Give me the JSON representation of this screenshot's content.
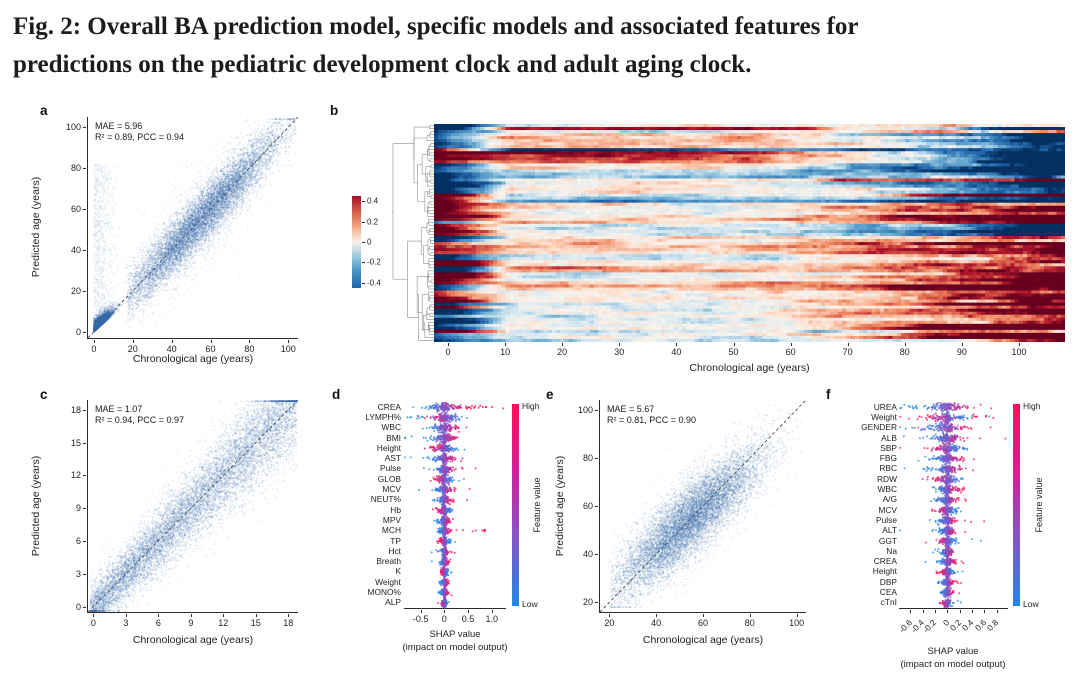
{
  "caption": {
    "line1": "Fig. 2: Overall BA prediction model, specific models and associated features for",
    "line2": "predictions on the pediatric development clock and adult aging clock."
  },
  "chart_data": [
    {
      "panel": "a",
      "type": "scatter",
      "xlabel": "Chronological age (years)",
      "ylabel": "Predicted age (years)",
      "xlim": [
        0,
        100
      ],
      "ylim": [
        0,
        100
      ],
      "xticks": [
        0,
        20,
        40,
        60,
        80,
        100
      ],
      "yticks": [
        0,
        20,
        40,
        60,
        80,
        100
      ],
      "xtick_labels": [
        "0",
        "20",
        "40",
        "60",
        "80",
        "100"
      ],
      "ytick_labels": [
        "0",
        "20",
        "40",
        "60",
        "80",
        "100"
      ],
      "stats": {
        "MAE": 5.96,
        "R2": 0.89,
        "PCC": 0.94
      },
      "stats_text": [
        "MAE = 5.96",
        "R² = 0.89, PCC = 0.94"
      ],
      "point_color": "#3a6ba6",
      "identity_line": "dashed",
      "description": "Dense blue scatter of predicted vs chronological age along the identity line with a tight pediatric cluster near the origin."
    },
    {
      "panel": "b",
      "type": "heatmap",
      "xlabel": "Chronological age (years)",
      "xticks": [
        0,
        10,
        20,
        30,
        40,
        50,
        60,
        70,
        80,
        90,
        100
      ],
      "xtick_labels": [
        "0",
        "10",
        "20",
        "30",
        "40",
        "50",
        "60",
        "70",
        "80",
        "90",
        "100"
      ],
      "colorbar": {
        "ticks": [
          0.4,
          0.2,
          0,
          -0.2,
          -0.4
        ],
        "tick_labels": [
          "0.4",
          "0.2",
          "0",
          "-0.2",
          "-0.4"
        ],
        "max_color": "#b2182b",
        "mid_color": "#f7f0e8",
        "min_color": "#2166ac"
      },
      "dendrogram": "left",
      "description": "Hierarchically clustered heatmap of feature values across chronological age 0-100, diverging red-blue scale about -0.4 to 0.4, strongest values in infancy and old age."
    },
    {
      "panel": "c",
      "type": "scatter",
      "xlabel": "Chronological age (years)",
      "ylabel": "Predicted age (years)",
      "xlim": [
        0,
        18
      ],
      "ylim": [
        0,
        18
      ],
      "xticks": [
        0,
        3,
        6,
        9,
        12,
        15,
        18
      ],
      "yticks": [
        0,
        3,
        6,
        9,
        12,
        15,
        18
      ],
      "xtick_labels": [
        "0",
        "3",
        "6",
        "9",
        "12",
        "15",
        "18"
      ],
      "ytick_labels": [
        "0",
        "3",
        "6",
        "9",
        "12",
        "15",
        "18"
      ],
      "stats": {
        "MAE": 1.07,
        "R2": 0.94,
        "PCC": 0.97
      },
      "stats_text": [
        "MAE = 1.07",
        "R² = 0.94, PCC = 0.97"
      ],
      "point_color": "#3a6ba6",
      "identity_line": "dashed"
    },
    {
      "panel": "d",
      "type": "beeswarm",
      "features": [
        "CREA",
        "LYMPH%",
        "WBC",
        "BMI",
        "Height",
        "AST",
        "Pulse",
        "GLOB",
        "MCV",
        "NEUT%",
        "Hb",
        "MPV",
        "MCH",
        "TP",
        "Hct",
        "Breath",
        "K",
        "Weight",
        "MONO%",
        "ALP"
      ],
      "xticks": [
        -0.5,
        0,
        0.5,
        1.0
      ],
      "xtick_labels": [
        "-0.5",
        "0",
        "0.5",
        "1.0"
      ],
      "xlim": [
        -0.85,
        1.3
      ],
      "xlabel_lines": [
        "SHAP value",
        "(impact on model output)"
      ],
      "colorbar": {
        "high": "High",
        "low": "Low",
        "label": "Feature value",
        "high_color": "#ff0d57",
        "low_color": "#1e88e5"
      }
    },
    {
      "panel": "e",
      "type": "scatter",
      "xlabel": "Chronological age (years)",
      "ylabel": "Predicted age (years)",
      "xlim": [
        20,
        100
      ],
      "ylim": [
        20,
        100
      ],
      "xticks": [
        20,
        40,
        60,
        80,
        100
      ],
      "yticks": [
        20,
        40,
        60,
        80,
        100
      ],
      "xtick_labels": [
        "20",
        "40",
        "60",
        "80",
        "100"
      ],
      "ytick_labels": [
        "20",
        "40",
        "60",
        "80",
        "100"
      ],
      "stats": {
        "MAE": 5.67,
        "R2": 0.81,
        "PCC": 0.9
      },
      "stats_text": [
        "MAE = 5.67",
        "R² = 0.81, PCC = 0.90"
      ],
      "point_color": "#3a6ba6",
      "identity_line": "dashed"
    },
    {
      "panel": "f",
      "type": "beeswarm",
      "features": [
        "UREA",
        "Weight",
        "GENDER",
        "ALB",
        "SBP",
        "FBG",
        "RBC",
        "RDW",
        "WBC",
        "A/G",
        "MCV",
        "Pulse",
        "ALT",
        "GGT",
        "Na",
        "CREA",
        "Height",
        "DBP",
        "CEA",
        "cTnI"
      ],
      "xticks": [
        -0.6,
        -0.4,
        -0.2,
        0,
        0.2,
        0.4,
        0.6,
        0.8
      ],
      "xtick_labels": [
        "-0.6",
        "-0.4",
        "-0.2",
        "0",
        "0.2",
        "0.4",
        "0.6",
        "0.8"
      ],
      "xlim": [
        -0.78,
        0.98
      ],
      "xlabel_lines": [
        "SHAP value",
        "(impact on model output)"
      ],
      "colorbar": {
        "high": "High",
        "low": "Low",
        "label": "Feature value",
        "high_color": "#ff0d57",
        "low_color": "#1e88e5"
      }
    }
  ]
}
